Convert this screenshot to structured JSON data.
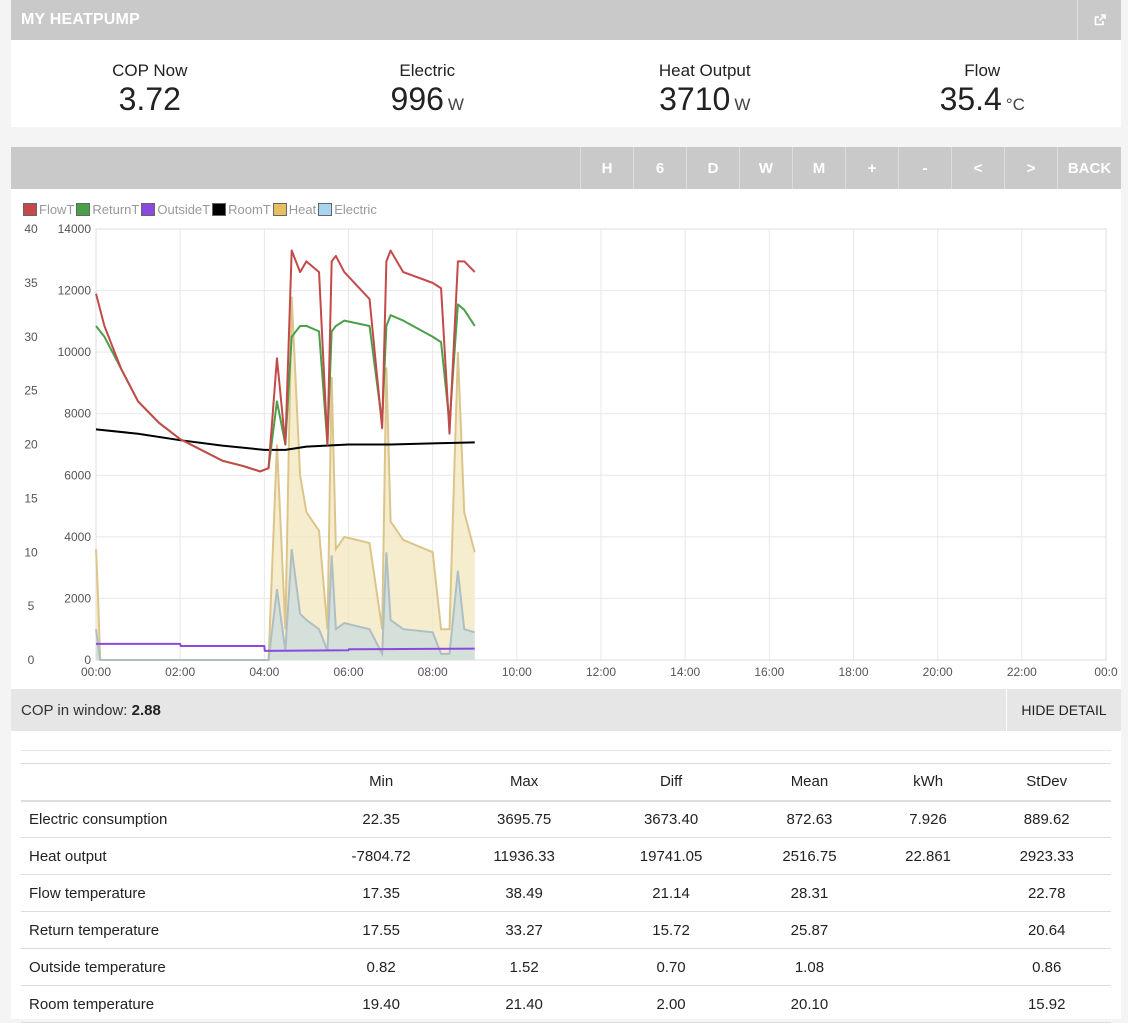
{
  "header": {
    "title": "MY HEATPUMP",
    "external_icon": "external-link-icon"
  },
  "stats": [
    {
      "label": "COP Now",
      "value": "3.72",
      "unit": ""
    },
    {
      "label": "Electric",
      "value": "996",
      "unit": "W"
    },
    {
      "label": "Heat Output",
      "value": "3710",
      "unit": "W"
    },
    {
      "label": "Flow",
      "value": "35.4",
      "unit": "°C"
    }
  ],
  "toolbar": {
    "buttons": [
      "H",
      "6",
      "D",
      "W",
      "M",
      "+",
      "-",
      "<",
      ">",
      "BACK"
    ]
  },
  "chart_data": {
    "type": "line",
    "legend": [
      {
        "name": "FlowT",
        "color": "#c44a4a"
      },
      {
        "name": "ReturnT",
        "color": "#4aa04a"
      },
      {
        "name": "OutsideT",
        "color": "#8a4ae0"
      },
      {
        "name": "RoomT",
        "color": "#000000"
      },
      {
        "name": "Heat",
        "color": "#e6c060"
      },
      {
        "name": "Electric",
        "color": "#a8d4f0"
      }
    ],
    "x_ticks": [
      "00:00",
      "02:00",
      "04:00",
      "06:00",
      "08:00",
      "10:00",
      "12:00",
      "14:00",
      "16:00",
      "18:00",
      "20:00",
      "22:00",
      "00:0"
    ],
    "xlim": [
      0,
      24
    ],
    "y_left": {
      "ticks": [
        "0",
        "5",
        "10",
        "15",
        "20",
        "25",
        "30",
        "35",
        "40"
      ],
      "ylim": [
        0,
        40
      ]
    },
    "y_right": {
      "ticks": [
        "0",
        "2000",
        "4000",
        "6000",
        "8000",
        "10000",
        "12000",
        "14000"
      ],
      "ylim": [
        0,
        14000
      ]
    },
    "grid": true,
    "series": [
      {
        "name": "FlowT",
        "axis": "left",
        "x": [
          0,
          0.2,
          0.6,
          1.0,
          1.5,
          2.0,
          2.5,
          3.0,
          3.5,
          3.9,
          4.1,
          4.3,
          4.5,
          4.65,
          4.85,
          5.0,
          5.3,
          5.5,
          5.6,
          5.7,
          5.9,
          6.5,
          6.8,
          6.9,
          7.0,
          7.3,
          8.0,
          8.2,
          8.4,
          8.6,
          8.75,
          9.0
        ],
        "y": [
          34,
          31,
          27,
          24,
          22,
          20.5,
          19.5,
          18.5,
          18,
          17.5,
          17.8,
          28,
          20,
          38,
          36,
          37,
          36,
          20,
          37,
          37.5,
          36,
          33.5,
          21.5,
          37,
          38,
          36,
          35,
          34.5,
          21,
          37,
          37,
          36
        ]
      },
      {
        "name": "ReturnT",
        "axis": "left",
        "x": [
          0,
          0.2,
          0.6,
          1.0,
          1.5,
          2.0,
          2.5,
          3.0,
          3.5,
          3.9,
          4.1,
          4.3,
          4.5,
          4.65,
          4.85,
          5.0,
          5.3,
          5.5,
          5.6,
          5.7,
          5.9,
          6.5,
          6.8,
          6.9,
          7.0,
          7.3,
          8.0,
          8.2,
          8.4,
          8.6,
          8.75,
          9.0
        ],
        "y": [
          31,
          30,
          27,
          24,
          22,
          20.5,
          19.5,
          18.5,
          18,
          17.5,
          17.8,
          24,
          20,
          30,
          31,
          31,
          30.5,
          20,
          30.5,
          31,
          31.5,
          31,
          22,
          31,
          32,
          31.5,
          30,
          29.5,
          22,
          33,
          32.5,
          31
        ]
      },
      {
        "name": "RoomT",
        "axis": "left",
        "x": [
          0,
          1,
          2,
          3,
          4,
          4.5,
          5,
          6,
          7,
          8,
          9
        ],
        "y": [
          21.4,
          21.0,
          20.4,
          19.9,
          19.5,
          19.5,
          19.8,
          20.0,
          20.0,
          20.1,
          20.2
        ]
      },
      {
        "name": "OutsideT",
        "axis": "left",
        "x": [
          0,
          2,
          2.01,
          4,
          4.01,
          6,
          6.01,
          9
        ],
        "y": [
          1.5,
          1.5,
          1.3,
          1.3,
          0.85,
          0.9,
          1.0,
          1.05
        ]
      },
      {
        "name": "Heat",
        "axis": "right",
        "x": [
          0,
          0.05,
          0.1,
          1.0,
          2.0,
          3.5,
          4.0,
          4.1,
          4.3,
          4.5,
          4.65,
          4.85,
          5.0,
          5.3,
          5.5,
          5.6,
          5.7,
          5.9,
          6.5,
          6.8,
          6.9,
          7.0,
          7.3,
          8.0,
          8.2,
          8.4,
          8.6,
          8.75,
          9.0
        ],
        "y": [
          3600,
          2000,
          0,
          0,
          0,
          0,
          0,
          0,
          7000,
          1000,
          11800,
          6000,
          4800,
          4200,
          1000,
          9200,
          3600,
          4000,
          3800,
          1000,
          9500,
          4500,
          3900,
          3500,
          1000,
          1000,
          10000,
          4800,
          3500
        ]
      },
      {
        "name": "Electric",
        "axis": "right",
        "x": [
          0,
          0.1,
          1.0,
          2.0,
          3.5,
          4.0,
          4.1,
          4.3,
          4.5,
          4.65,
          4.85,
          5.0,
          5.3,
          5.5,
          5.6,
          5.7,
          5.9,
          6.5,
          6.8,
          6.9,
          7.0,
          7.3,
          8.0,
          8.2,
          8.4,
          8.6,
          8.75,
          9.0
        ],
        "y": [
          1000,
          0,
          0,
          0,
          0,
          0,
          0,
          2300,
          300,
          3600,
          1500,
          1300,
          1000,
          300,
          3400,
          1000,
          1200,
          1000,
          200,
          3500,
          1300,
          1000,
          900,
          200,
          200,
          2900,
          1000,
          900
        ]
      }
    ]
  },
  "cop_window": {
    "label": "COP in window:",
    "value": "2.88",
    "hide_label": "HIDE DETAIL"
  },
  "table": {
    "headers": [
      "",
      "Min",
      "Max",
      "Diff",
      "Mean",
      "kWh",
      "StDev"
    ],
    "rows": [
      [
        "Electric consumption",
        "22.35",
        "3695.75",
        "3673.40",
        "872.63",
        "7.926",
        "889.62"
      ],
      [
        "Heat output",
        "-7804.72",
        "11936.33",
        "19741.05",
        "2516.75",
        "22.861",
        "2923.33"
      ],
      [
        "Flow temperature",
        "17.35",
        "38.49",
        "21.14",
        "28.31",
        "",
        "22.78"
      ],
      [
        "Return temperature",
        "17.55",
        "33.27",
        "15.72",
        "25.87",
        "",
        "20.64"
      ],
      [
        "Outside temperature",
        "0.82",
        "1.52",
        "0.70",
        "1.08",
        "",
        "0.86"
      ],
      [
        "Room temperature",
        "19.40",
        "21.40",
        "2.00",
        "20.10",
        "",
        "15.92"
      ]
    ]
  }
}
